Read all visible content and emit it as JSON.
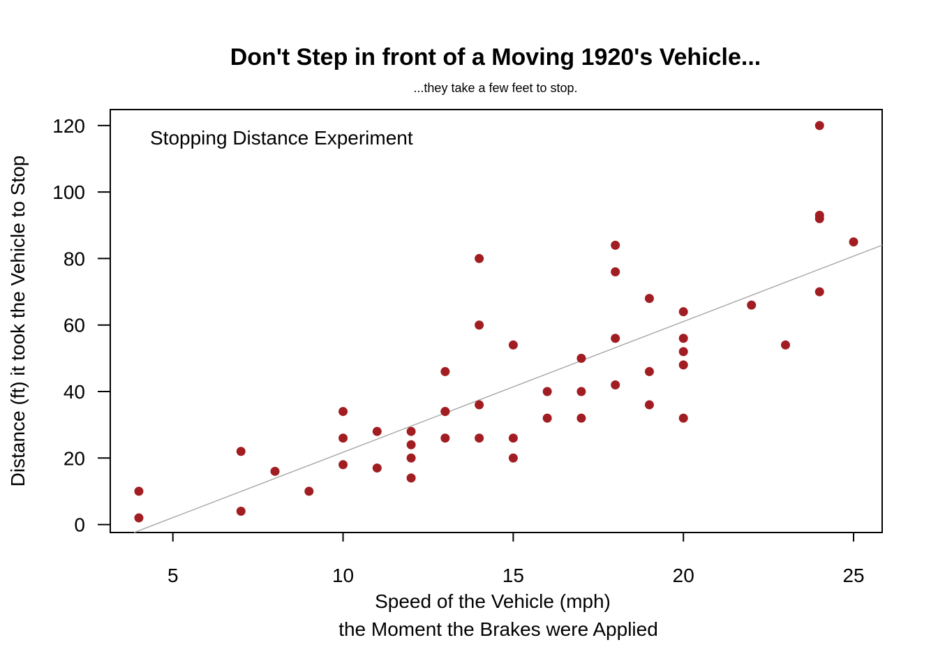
{
  "chart_data": {
    "type": "scatter",
    "title": "Don't Step in front of a Moving 1920's Vehicle...",
    "subtitle": "...they take a few feet to stop.",
    "xlabel": "Speed of the Vehicle (mph)",
    "xlabel2": "the Moment the Brakes were Applied",
    "ylabel": "Distance (ft) it took the Vehicle to Stop",
    "annotation": "Stopping Distance Experiment",
    "xlim": [
      3.16,
      25.84
    ],
    "ylim": [
      -2.4,
      124.8
    ],
    "xticks": [
      5,
      10,
      15,
      20,
      25
    ],
    "yticks": [
      0,
      20,
      40,
      60,
      80,
      100,
      120
    ],
    "grid": false,
    "point_color": "#A11D21",
    "line_color": "#ABABAB",
    "regression_line": {
      "intercept": -17.579,
      "slope": 3.932
    },
    "points": [
      [
        4,
        2
      ],
      [
        4,
        10
      ],
      [
        7,
        4
      ],
      [
        7,
        22
      ],
      [
        8,
        16
      ],
      [
        9,
        10
      ],
      [
        10,
        18
      ],
      [
        10,
        26
      ],
      [
        10,
        34
      ],
      [
        11,
        17
      ],
      [
        11,
        28
      ],
      [
        12,
        14
      ],
      [
        12,
        20
      ],
      [
        12,
        24
      ],
      [
        12,
        28
      ],
      [
        13,
        26
      ],
      [
        13,
        34
      ],
      [
        13,
        34
      ],
      [
        13,
        46
      ],
      [
        14,
        26
      ],
      [
        14,
        36
      ],
      [
        14,
        60
      ],
      [
        14,
        80
      ],
      [
        15,
        20
      ],
      [
        15,
        26
      ],
      [
        15,
        54
      ],
      [
        16,
        32
      ],
      [
        16,
        40
      ],
      [
        17,
        32
      ],
      [
        17,
        40
      ],
      [
        17,
        50
      ],
      [
        18,
        42
      ],
      [
        18,
        56
      ],
      [
        18,
        76
      ],
      [
        18,
        84
      ],
      [
        19,
        36
      ],
      [
        19,
        46
      ],
      [
        19,
        68
      ],
      [
        20,
        32
      ],
      [
        20,
        48
      ],
      [
        20,
        52
      ],
      [
        20,
        56
      ],
      [
        20,
        64
      ],
      [
        22,
        66
      ],
      [
        23,
        54
      ],
      [
        24,
        70
      ],
      [
        24,
        92
      ],
      [
        24,
        93
      ],
      [
        24,
        120
      ],
      [
        25,
        85
      ]
    ]
  }
}
